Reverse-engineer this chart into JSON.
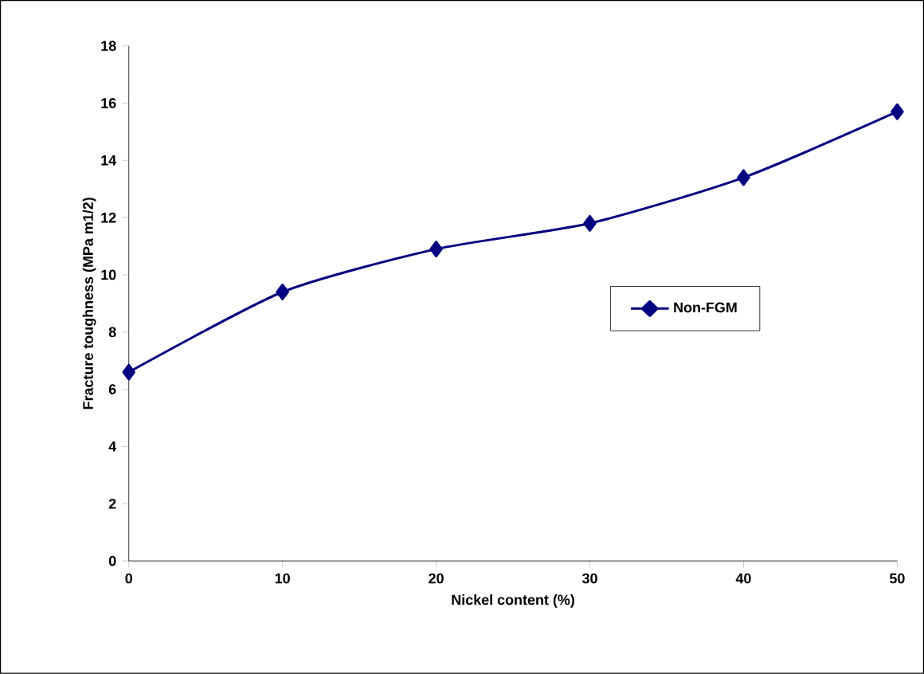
{
  "chart_data": {
    "type": "line",
    "xlabel": "Nickel content (%)",
    "ylabel": "Fracture toughness (MPa m1/2)",
    "x": [
      0,
      10,
      20,
      30,
      40,
      50
    ],
    "series": [
      {
        "name": "Non-FGM",
        "color": "#000080",
        "values": [
          6.6,
          9.4,
          10.9,
          11.8,
          13.4,
          15.7
        ]
      }
    ],
    "xlim": [
      0,
      50
    ],
    "ylim": [
      0,
      18
    ],
    "xticks": [
      0,
      10,
      20,
      30,
      40,
      50
    ],
    "yticks": [
      0,
      2,
      4,
      6,
      8,
      10,
      12,
      14,
      16,
      18
    ],
    "marker": "diamond",
    "line_style": "solid",
    "legend": "right",
    "grid": false
  }
}
